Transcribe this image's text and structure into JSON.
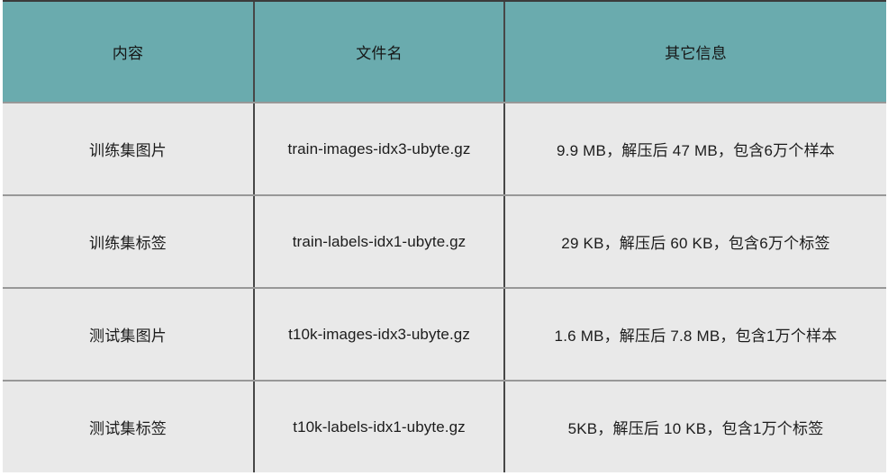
{
  "table": {
    "header": {
      "col_content": "内容",
      "col_filename": "文件名",
      "col_info": "其它信息"
    },
    "rows": [
      {
        "content": "训练集图片",
        "filename": "train-images-idx3-ubyte.gz",
        "info": "9.9 MB，解压后 47 MB，包含6万个样本"
      },
      {
        "content": "训练集标签",
        "filename": "train-labels-idx1-ubyte.gz",
        "info": "29 KB，解压后 60 KB，包含6万个标签"
      },
      {
        "content": "测试集图片",
        "filename": "t10k-images-idx3-ubyte.gz",
        "info": "1.6 MB，解压后 7.8 MB，包含1万个样本"
      },
      {
        "content": "测试集标签",
        "filename": "t10k-labels-idx1-ubyte.gz",
        "info": "5KB，解压后 10 KB，包含1万个标签"
      }
    ],
    "colors": {
      "header_bg": "#6aabae",
      "row_bg": "#e9e9e9",
      "top_border": "#3b3b3b",
      "vertical_divider": "#474747",
      "horizontal_divider": "#989898",
      "text": "#1c1c1c"
    }
  }
}
